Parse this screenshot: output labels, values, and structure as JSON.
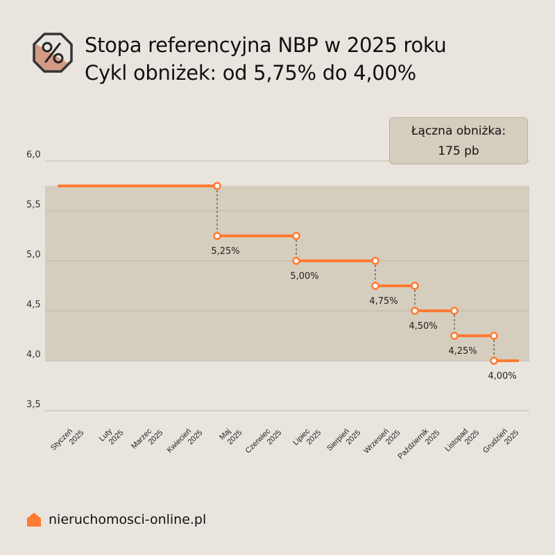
{
  "header": {
    "title_line1": "Stopa referencyjna NBP w 2025 roku",
    "title_line2": "Cykl obniżek: od 5,75% do 4,00%",
    "icon": "percent-octagon-icon"
  },
  "callout": {
    "line1": "Łączna obniżka:",
    "line2": "175 pb"
  },
  "footer": {
    "brand": "nieruchomosci-online.pl",
    "icon": "house-icon"
  },
  "colors": {
    "background": "#e9e5de",
    "band": "#d5cdbd",
    "line": "#ff7a33",
    "badge": "#d39a84"
  },
  "chart_data": {
    "type": "line",
    "step": true,
    "ylim": [
      3.5,
      6.0
    ],
    "yticks": [
      "6,0",
      "5,5",
      "5,0",
      "4,5",
      "4,0",
      "3,5"
    ],
    "ytick_values": [
      6.0,
      5.5,
      5.0,
      4.5,
      4.0,
      3.5
    ],
    "grid": true,
    "shaded_range": [
      4.0,
      5.75
    ],
    "categories": [
      "Styczeń 2025",
      "Luty 2025",
      "Marzec 2025",
      "Kwiecień 2025",
      "Maj 2025",
      "Czerwiec 2025",
      "Lipiec 2025",
      "Sierpień 2025",
      "Wrzesień 2025",
      "Październik 2025",
      "Listopad 2025",
      "Grudzień 2025"
    ],
    "category_lines": [
      [
        "Styczeń",
        "2025"
      ],
      [
        "Luty",
        "2025"
      ],
      [
        "Marzec",
        "2025"
      ],
      [
        "Kwiecień",
        "2025"
      ],
      [
        "Maj",
        "2025"
      ],
      [
        "Czerwiec",
        "2025"
      ],
      [
        "Lipiec",
        "2025"
      ],
      [
        "Sierpień",
        "2025"
      ],
      [
        "Wrzesień",
        "2025"
      ],
      [
        "Październik",
        "2025"
      ],
      [
        "Listopad",
        "2025"
      ],
      [
        "Grudzień",
        "2025"
      ]
    ],
    "values": [
      5.75,
      5.75,
      5.75,
      5.75,
      5.25,
      5.25,
      5.0,
      5.0,
      4.75,
      4.5,
      4.25,
      4.0
    ],
    "changes": [
      {
        "month_index": 4,
        "from": 5.75,
        "to": 5.25,
        "label": "5,25%"
      },
      {
        "month_index": 6,
        "from": 5.25,
        "to": 5.0,
        "label": "5,00%"
      },
      {
        "month_index": 8,
        "from": 5.0,
        "to": 4.75,
        "label": "4,75%"
      },
      {
        "month_index": 9,
        "from": 4.75,
        "to": 4.5,
        "label": "4,50%"
      },
      {
        "month_index": 10,
        "from": 4.5,
        "to": 4.25,
        "label": "4,25%"
      },
      {
        "month_index": 11,
        "from": 4.25,
        "to": 4.0,
        "label": "4,00%"
      }
    ]
  }
}
